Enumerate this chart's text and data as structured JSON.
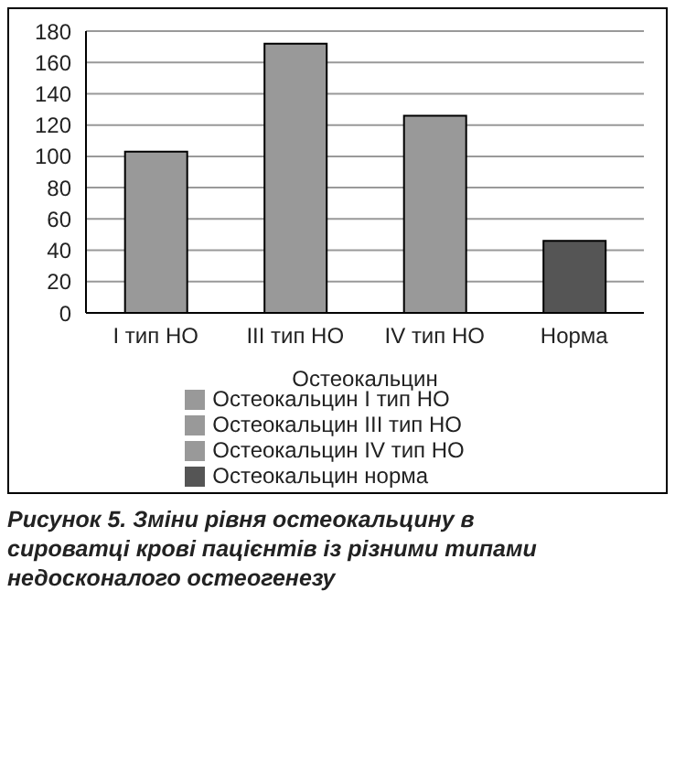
{
  "chart_data": {
    "type": "bar",
    "title": "Рисунок 5. Зміни рівня остеокальцину в сироватці крові пацієнтів із різними типами недосконалого остеогенезу",
    "xlabel": "Остеокальцин",
    "categories": [
      "I тип НО",
      "III тип НО",
      "IV тип НО",
      "Норма"
    ],
    "series": [
      {
        "name": "Остеокальцин I тип НО",
        "color": "#999999",
        "values": [
          103,
          null,
          null,
          null
        ]
      },
      {
        "name": "Остеокальцин III тип НО",
        "color": "#999999",
        "values": [
          null,
          172,
          null,
          null
        ]
      },
      {
        "name": "Остеокальцин IV тип НО",
        "color": "#999999",
        "values": [
          null,
          null,
          126,
          null
        ]
      },
      {
        "name": "Остеокальцин норма",
        "color": "#555555",
        "values": [
          null,
          null,
          null,
          46
        ]
      }
    ],
    "stacked": true,
    "ylim": [
      0,
      180
    ],
    "yticks": [
      0,
      20,
      40,
      60,
      80,
      100,
      120,
      140,
      160,
      180
    ],
    "grid": "y",
    "legend": "bottom"
  }
}
